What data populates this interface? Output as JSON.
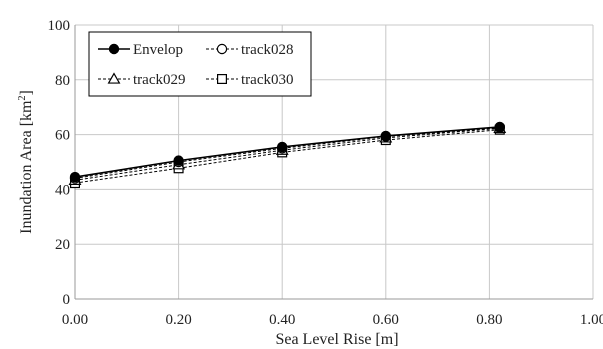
{
  "chart_data": {
    "type": "line",
    "title": "",
    "xlabel": "Sea Level Rise [m]",
    "ylabel_main": "Inundation Area [km",
    "ylabel_sup": "2",
    "ylabel_close": "]",
    "xlim": [
      0,
      1.0
    ],
    "ylim": [
      0,
      100
    ],
    "xticks": [
      0.0,
      0.2,
      0.4,
      0.6,
      0.8,
      1.0
    ],
    "xtick_labels": [
      "0.00",
      "0.20",
      "0.40",
      "0.60",
      "0.80",
      "1.00"
    ],
    "yticks": [
      0,
      20,
      40,
      60,
      80,
      100
    ],
    "ytick_labels": [
      "0",
      "20",
      "40",
      "60",
      "80",
      "100"
    ],
    "grid": true,
    "legend": "top-left",
    "x": [
      0.0,
      0.2,
      0.4,
      0.6,
      0.82
    ],
    "series": [
      {
        "name": "Envelop",
        "values": [
          44.5,
          50.5,
          55.5,
          59.5,
          62.8
        ],
        "marker": "filled-circle",
        "line": "solid"
      },
      {
        "name": "track028",
        "values": [
          44.0,
          50.0,
          55.0,
          59.3,
          62.5
        ],
        "marker": "open-circle",
        "line": "dashed"
      },
      {
        "name": "track029",
        "values": [
          43.3,
          49.0,
          54.3,
          58.8,
          62.3
        ],
        "marker": "open-triangle",
        "line": "dashed"
      },
      {
        "name": "track030",
        "values": [
          42.3,
          47.7,
          53.5,
          58.0,
          61.8
        ],
        "marker": "open-square",
        "line": "dashed"
      }
    ]
  }
}
